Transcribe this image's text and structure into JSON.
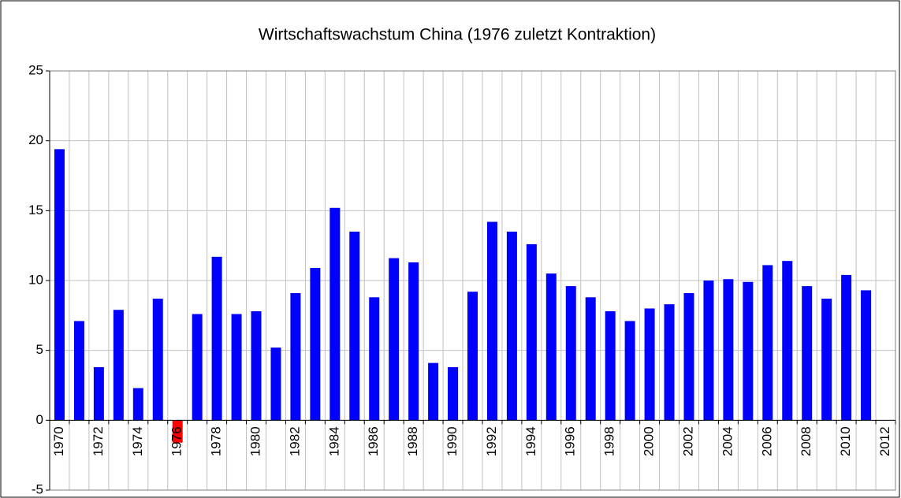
{
  "chart_data": {
    "type": "bar",
    "title": "Wirtschaftswachstum China (1976 zuletzt Kontraktion)",
    "categories": [
      "1970",
      null,
      "1972",
      null,
      "1974",
      null,
      "1976",
      null,
      "1978",
      null,
      "1980",
      null,
      "1982",
      null,
      "1984",
      null,
      "1986",
      null,
      "1988",
      null,
      "1990",
      null,
      "1992",
      null,
      "1994",
      null,
      "1996",
      null,
      "1998",
      null,
      "2000",
      null,
      "2002",
      null,
      "2004",
      null,
      "2006",
      null,
      "2008",
      null,
      "2010",
      null,
      "2012"
    ],
    "values": [
      19.4,
      7.1,
      3.8,
      7.9,
      2.3,
      8.7,
      -1.6,
      7.6,
      11.7,
      7.6,
      7.8,
      5.2,
      9.1,
      10.9,
      15.2,
      13.5,
      8.8,
      11.6,
      11.3,
      4.1,
      3.8,
      9.2,
      14.2,
      13.5,
      12.6,
      10.5,
      9.6,
      8.8,
      7.8,
      7.1,
      8.0,
      8.3,
      9.1,
      10.0,
      10.1,
      9.9,
      11.1,
      11.4,
      9.6,
      8.7,
      10.4,
      9.3,
      null
    ],
    "color": "#0000ff",
    "negative_color": "#ff0000",
    "ylim": [
      -5,
      25
    ],
    "yticks": [
      -5,
      0,
      5,
      10,
      15,
      20,
      25
    ],
    "grid": true
  }
}
